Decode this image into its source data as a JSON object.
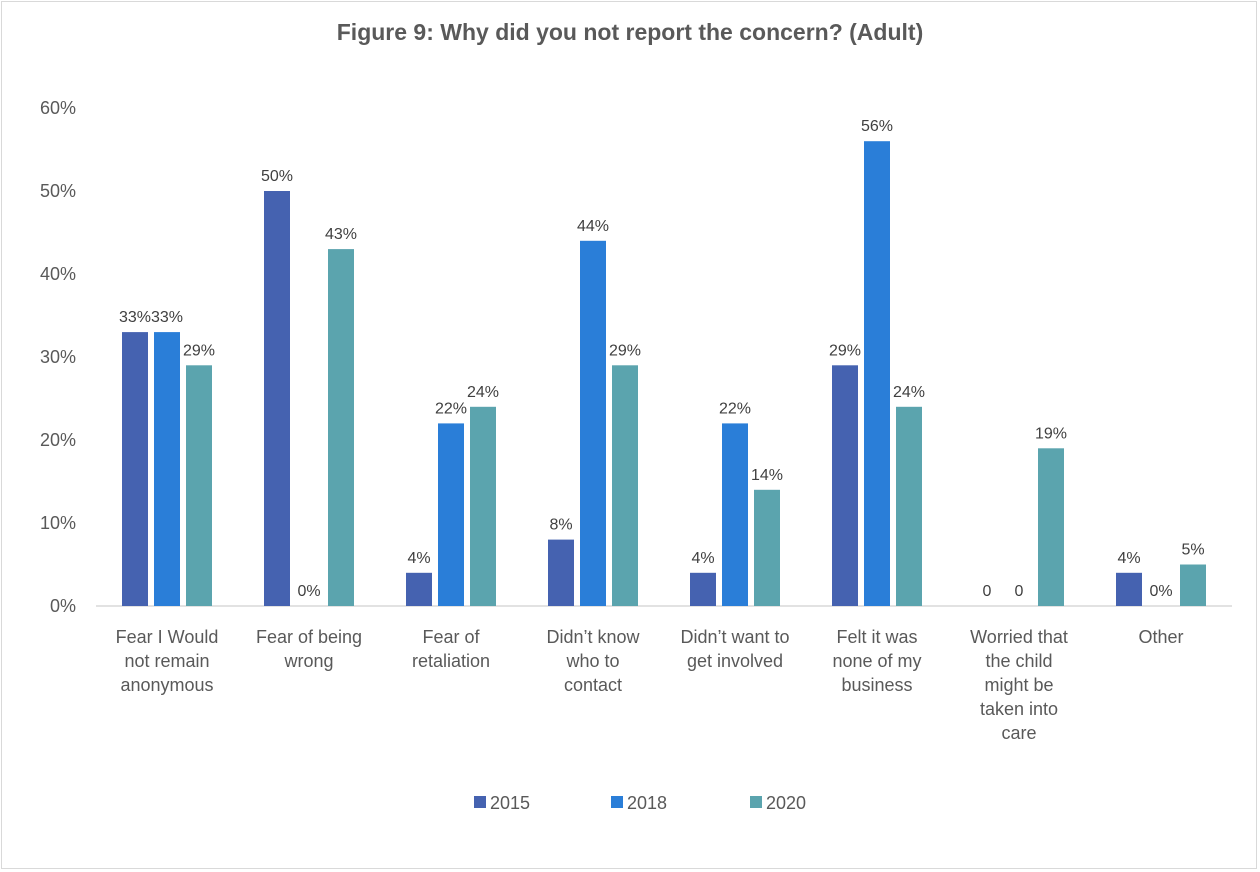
{
  "chart_data": {
    "type": "bar",
    "title": "Figure 9: Why did you not report the concern? (Adult)",
    "categories": [
      [
        "Fear I Would",
        "not remain",
        "anonymous"
      ],
      [
        "Fear of being",
        "wrong"
      ],
      [
        "Fear of",
        "retaliation"
      ],
      [
        "Didn’t know",
        "who to",
        "contact"
      ],
      [
        "Didn’t want to",
        "get involved"
      ],
      [
        "Felt it was",
        "none of my",
        "business"
      ],
      [
        "Worried that",
        "the child",
        "might be",
        "taken into",
        "care"
      ],
      [
        "Other"
      ]
    ],
    "series": [
      {
        "name": "2015",
        "color": "#4562b0",
        "values": [
          0.33,
          0.5,
          0.04,
          0.08,
          0.04,
          0.29,
          0,
          0.04
        ],
        "labels": [
          "33%",
          "50%",
          "4%",
          "8%",
          "4%",
          "29%",
          "0",
          "4%"
        ]
      },
      {
        "name": "2018",
        "color": "#2a7ed8",
        "values": [
          0.33,
          0,
          0.22,
          0.44,
          0.22,
          0.56,
          0,
          0
        ],
        "labels": [
          "33%",
          "0%",
          "22%",
          "44%",
          "22%",
          "56%",
          "0",
          "0%"
        ]
      },
      {
        "name": "2020",
        "color": "#5ba4ae",
        "values": [
          0.29,
          0.43,
          0.24,
          0.29,
          0.14,
          0.24,
          0.19,
          0.05
        ],
        "labels": [
          "29%",
          "43%",
          "24%",
          "29%",
          "14%",
          "24%",
          "19%",
          "5%"
        ]
      }
    ],
    "yticks": [
      "0%",
      "10%",
      "20%",
      "30%",
      "40%",
      "50%",
      "60%"
    ],
    "ylim": [
      0,
      0.6
    ],
    "xlabel": "",
    "ylabel": "",
    "grid": false,
    "legend": "bottom"
  }
}
